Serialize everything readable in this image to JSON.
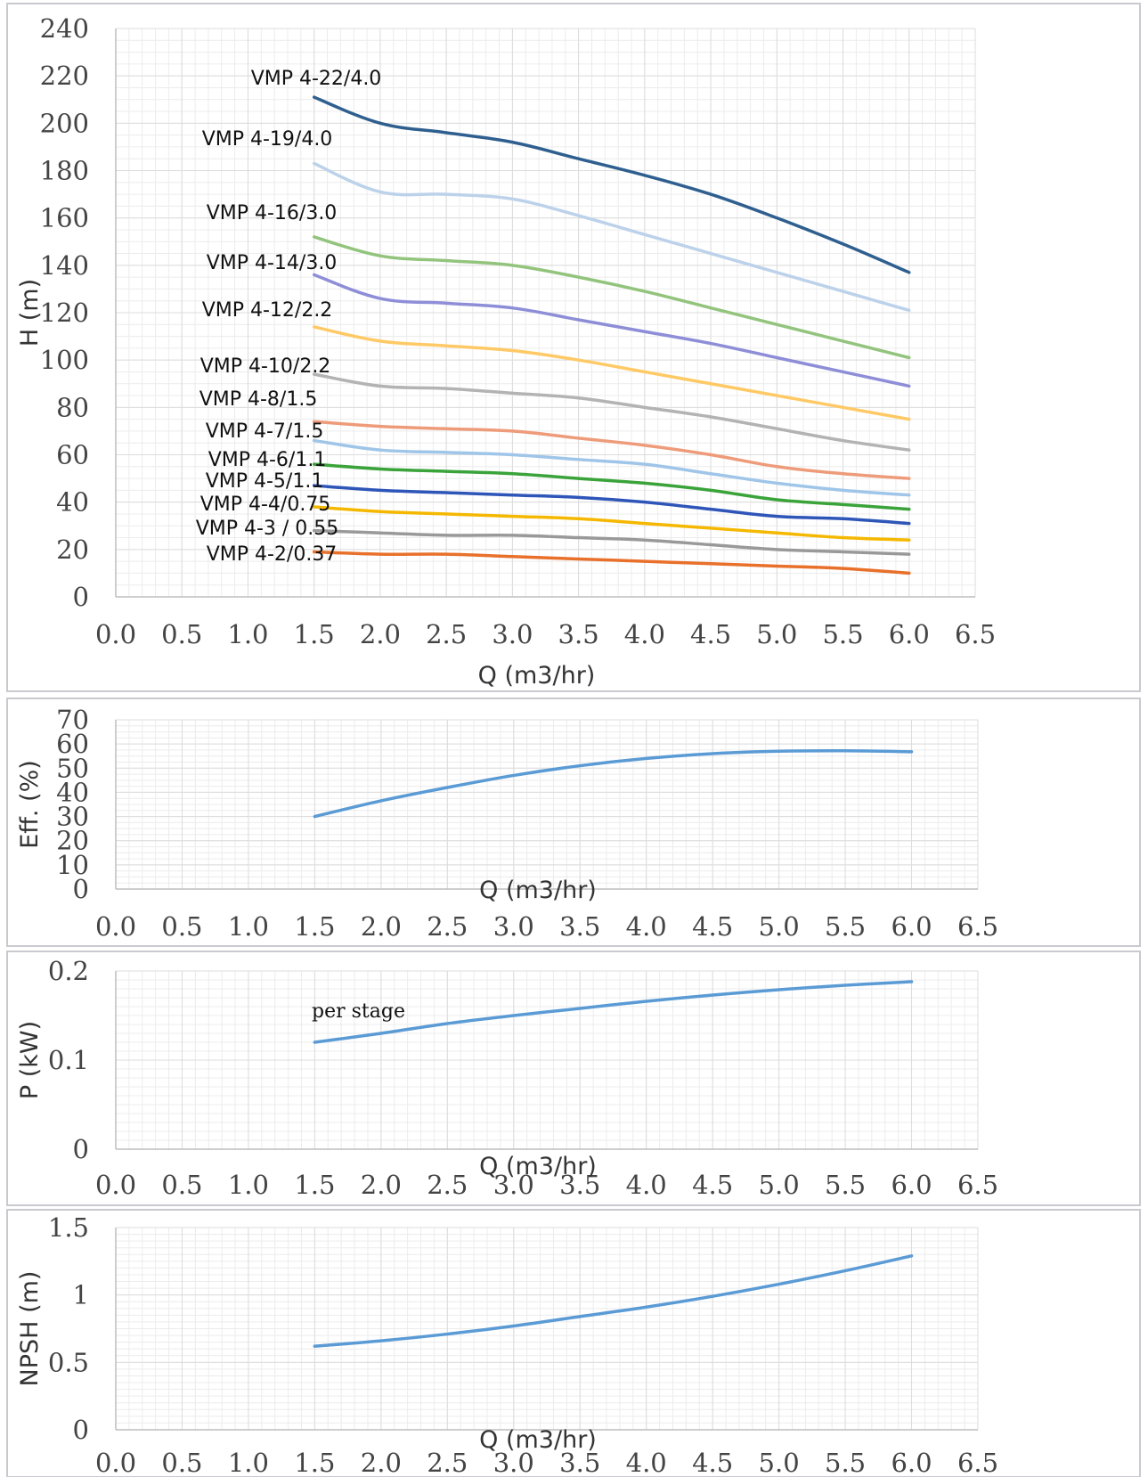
{
  "chart_data": [
    {
      "id": "head",
      "type": "line",
      "xlabel": "Q (m3/hr)",
      "ylabel": "H (m)",
      "xlim": [
        0,
        6.5
      ],
      "ylim": [
        0,
        240
      ],
      "xticks": [
        "0.0",
        "0.5",
        "1.0",
        "1.5",
        "2.0",
        "2.5",
        "3.0",
        "3.5",
        "4.0",
        "4.5",
        "5.0",
        "5.5",
        "6.0",
        "6.5"
      ],
      "yticks": [
        "0",
        "20",
        "40",
        "60",
        "80",
        "100",
        "120",
        "140",
        "160",
        "180",
        "200",
        "220",
        "240"
      ],
      "grid": true,
      "series": [
        {
          "name": "VMP 4-22/4.0",
          "color": "#2f5f8f",
          "x": [
            1.5,
            2.0,
            2.5,
            3.0,
            3.5,
            4.0,
            4.5,
            5.0,
            5.5,
            6.0
          ],
          "y": [
            211,
            200,
            196,
            192,
            185,
            178,
            170,
            160,
            149,
            137
          ]
        },
        {
          "name": "VMP 4-19/4.0",
          "color": "#bcd2ea",
          "x": [
            1.5,
            2.0,
            2.5,
            3.0,
            3.5,
            4.0,
            4.5,
            5.0,
            5.5,
            6.0
          ],
          "y": [
            183,
            171,
            170,
            168,
            161,
            153,
            145,
            137,
            129,
            121
          ]
        },
        {
          "name": "VMP 4-16/3.0",
          "color": "#93c47d",
          "x": [
            1.5,
            2.0,
            2.5,
            3.0,
            3.5,
            4.0,
            4.5,
            5.0,
            5.5,
            6.0
          ],
          "y": [
            152,
            144,
            142,
            140,
            135,
            129,
            122,
            115,
            108,
            101
          ]
        },
        {
          "name": "VMP 4-14/3.0",
          "color": "#8e8ed8",
          "x": [
            1.5,
            2.0,
            2.5,
            3.0,
            3.5,
            4.0,
            4.5,
            5.0,
            5.5,
            6.0
          ],
          "y": [
            136,
            126,
            124,
            122,
            117,
            112,
            107,
            101,
            95,
            89
          ]
        },
        {
          "name": "VMP 4-12/2.2",
          "color": "#ffc966",
          "x": [
            1.5,
            2.0,
            2.5,
            3.0,
            3.5,
            4.0,
            4.5,
            5.0,
            5.5,
            6.0
          ],
          "y": [
            114,
            108,
            106,
            104,
            100,
            95,
            90,
            85,
            80,
            75
          ]
        },
        {
          "name": "VMP 4-10/2.2",
          "color": "#b3b3b3",
          "x": [
            1.5,
            2.0,
            2.5,
            3.0,
            3.5,
            4.0,
            4.5,
            5.0,
            5.5,
            6.0
          ],
          "y": [
            94,
            89,
            88,
            86,
            84,
            80,
            76,
            71,
            66,
            62
          ]
        },
        {
          "name": "VMP 4-8/1.5",
          "color": "#ee9b7a",
          "x": [
            1.5,
            2.0,
            2.5,
            3.0,
            3.5,
            4.0,
            4.5,
            5.0,
            5.5,
            6.0
          ],
          "y": [
            74,
            72,
            71,
            70,
            67,
            64,
            60,
            55,
            52,
            50
          ]
        },
        {
          "name": "VMP 4-7/1.5",
          "color": "#9fc5e8",
          "x": [
            1.5,
            2.0,
            2.5,
            3.0,
            3.5,
            4.0,
            4.5,
            5.0,
            5.5,
            6.0
          ],
          "y": [
            66,
            62,
            61,
            60,
            58,
            56,
            52,
            48,
            45,
            43
          ]
        },
        {
          "name": "VMP 4-6/1.1",
          "color": "#3aa33a",
          "x": [
            1.5,
            2.0,
            2.5,
            3.0,
            3.5,
            4.0,
            4.5,
            5.0,
            5.5,
            6.0
          ],
          "y": [
            56,
            54,
            53,
            52,
            50,
            48,
            45,
            41,
            39,
            37
          ]
        },
        {
          "name": "VMP 4-5/1.1",
          "color": "#2e55b8",
          "x": [
            1.5,
            2.0,
            2.5,
            3.0,
            3.5,
            4.0,
            4.5,
            5.0,
            5.5,
            6.0
          ],
          "y": [
            47,
            45,
            44,
            43,
            42,
            40,
            37,
            34,
            33,
            31
          ]
        },
        {
          "name": "VMP 4-4/0.75",
          "color": "#f5b800",
          "x": [
            1.5,
            2.0,
            2.5,
            3.0,
            3.5,
            4.0,
            4.5,
            5.0,
            5.5,
            6.0
          ],
          "y": [
            38,
            36,
            35,
            34,
            33,
            31,
            29,
            27,
            25,
            24
          ]
        },
        {
          "name": "VMP 4-3 / 0.55",
          "color": "#999999",
          "x": [
            1.5,
            2.0,
            2.5,
            3.0,
            3.5,
            4.0,
            4.5,
            5.0,
            5.5,
            6.0
          ],
          "y": [
            28,
            27,
            26,
            26,
            25,
            24,
            22,
            20,
            19,
            18
          ]
        },
        {
          "name": "VMP 4-2/0.37",
          "color": "#e8702a",
          "x": [
            1.5,
            2.0,
            2.5,
            3.0,
            3.5,
            4.0,
            4.5,
            5.0,
            5.5,
            6.0
          ],
          "y": [
            19,
            18,
            18,
            17,
            16,
            15,
            14,
            13,
            12,
            10
          ]
        }
      ]
    },
    {
      "id": "efficiency",
      "type": "line",
      "xlabel": "Q (m3/hr)",
      "ylabel": "Eff. (%)",
      "xlim": [
        0,
        6.5
      ],
      "ylim": [
        0,
        70
      ],
      "xticks": [
        "0.0",
        "0.5",
        "1.0",
        "1.5",
        "2.0",
        "2.5",
        "3.0",
        "3.5",
        "4.0",
        "4.5",
        "5.0",
        "5.5",
        "6.0",
        "6.5"
      ],
      "yticks": [
        "0",
        "10",
        "20",
        "30",
        "40",
        "50",
        "60",
        "70"
      ],
      "grid": true,
      "series": [
        {
          "color": "#5b9bd5",
          "x": [
            1.5,
            2.0,
            2.5,
            3.0,
            3.5,
            4.0,
            4.5,
            5.0,
            5.5,
            6.0
          ],
          "y": [
            30,
            36.5,
            42,
            47,
            51,
            54,
            56,
            57,
            57.2,
            56.8
          ]
        }
      ]
    },
    {
      "id": "power",
      "type": "line",
      "xlabel": "Q (m3/hr)",
      "ylabel": "P (kW)",
      "xlim": [
        0,
        6.5
      ],
      "ylim": [
        0,
        0.2
      ],
      "xticks": [
        "0.0",
        "0.5",
        "1.0",
        "1.5",
        "2.0",
        "2.5",
        "3.0",
        "3.5",
        "4.0",
        "4.5",
        "5.0",
        "5.5",
        "6.0",
        "6.5"
      ],
      "yticks": [
        "0",
        "0.1",
        "0.2"
      ],
      "grid": true,
      "annotation": "per stage",
      "series": [
        {
          "color": "#5b9bd5",
          "x": [
            1.5,
            2.0,
            2.5,
            3.0,
            3.5,
            4.0,
            4.5,
            5.0,
            5.5,
            6.0
          ],
          "y": [
            0.12,
            0.13,
            0.141,
            0.15,
            0.158,
            0.166,
            0.173,
            0.179,
            0.184,
            0.188
          ]
        }
      ]
    },
    {
      "id": "npsh",
      "type": "line",
      "xlabel": "Q (m3/hr)",
      "ylabel": "NPSH (m)",
      "xlim": [
        0,
        6.5
      ],
      "ylim": [
        0,
        1.5
      ],
      "xticks": [
        "0.0",
        "0.5",
        "1.0",
        "1.5",
        "2.0",
        "2.5",
        "3.0",
        "3.5",
        "4.0",
        "4.5",
        "5.0",
        "5.5",
        "6.0",
        "6.5"
      ],
      "yticks": [
        "0",
        "0.5",
        "1",
        "1.5"
      ],
      "grid": true,
      "series": [
        {
          "color": "#5b9bd5",
          "x": [
            1.5,
            2.0,
            2.5,
            3.0,
            3.5,
            4.0,
            4.5,
            5.0,
            5.5,
            6.0
          ],
          "y": [
            0.62,
            0.66,
            0.71,
            0.77,
            0.84,
            0.91,
            0.99,
            1.08,
            1.18,
            1.29
          ]
        }
      ]
    }
  ]
}
